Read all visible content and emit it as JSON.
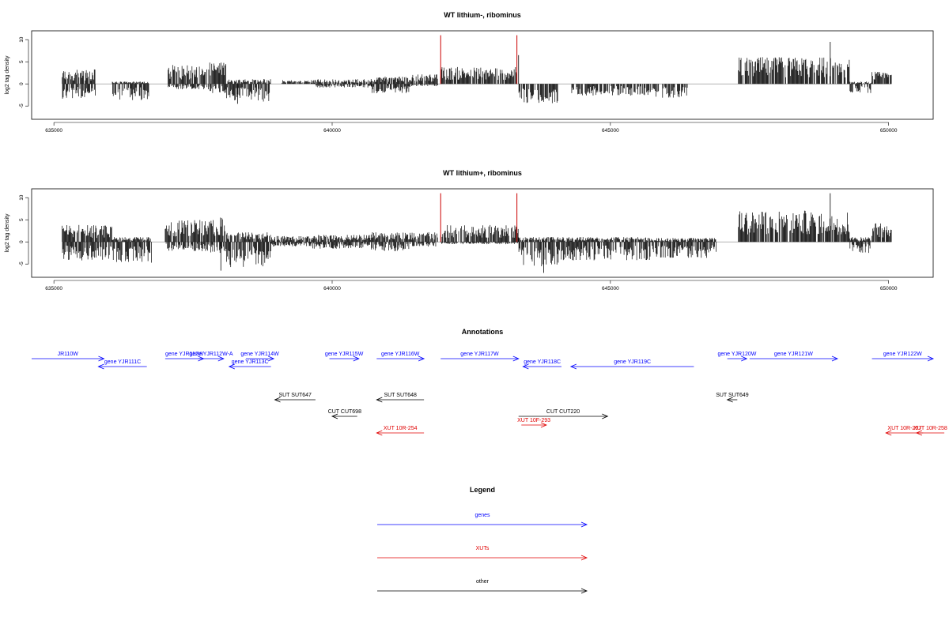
{
  "chart_data": [
    {
      "type": "bar",
      "title": "WT lithium-, ribominus",
      "xlabel": "",
      "ylabel": "log2 tag density",
      "xlim": [
        634600,
        650800
      ],
      "ylim": [
        -8,
        12
      ],
      "xticks": [
        635000,
        640000,
        645000,
        650000
      ],
      "yticks": [
        -5,
        0,
        5,
        10
      ],
      "grid": false,
      "bar_color": "#000000",
      "highlight_color": "#cc0000",
      "highlights": [
        {
          "x": 641950,
          "y": 11
        },
        {
          "x": 643320,
          "y": 11
        }
      ],
      "segments": [
        {
          "start": 635150,
          "end": 635750,
          "pos": 3,
          "neg": -3.2
        },
        {
          "start": 636050,
          "end": 636700,
          "pos": 0.5,
          "neg": -3.5
        },
        {
          "start": 637050,
          "end": 637800,
          "pos": 4,
          "neg": -1.2
        },
        {
          "start": 637800,
          "end": 638100,
          "pos": 4.5,
          "neg": -2
        },
        {
          "start": 638100,
          "end": 638900,
          "pos": 1,
          "neg": -3.8
        },
        {
          "start": 639100,
          "end": 639700,
          "pos": 0.8,
          "neg": 0
        },
        {
          "start": 639700,
          "end": 640700,
          "pos": 1,
          "neg": -0.8
        },
        {
          "start": 640700,
          "end": 641400,
          "pos": 1.5,
          "neg": -2
        },
        {
          "start": 641400,
          "end": 641900,
          "pos": 2,
          "neg": -0.5
        },
        {
          "start": 641950,
          "end": 643350,
          "pos": 3.5,
          "neg": 0
        },
        {
          "start": 643350,
          "end": 644050,
          "pos": 0,
          "neg": -4.5
        },
        {
          "start": 644300,
          "end": 645800,
          "pos": 0,
          "neg": -2.5
        },
        {
          "start": 645800,
          "end": 646400,
          "pos": 0,
          "neg": -3
        },
        {
          "start": 647300,
          "end": 649300,
          "pos": 5.5,
          "neg": 0
        },
        {
          "start": 649300,
          "end": 649700,
          "pos": 0.5,
          "neg": -2
        },
        {
          "start": 649700,
          "end": 650050,
          "pos": 2.5,
          "neg": 0
        }
      ],
      "peaks": [
        {
          "x": 648950,
          "y": 9.5
        },
        {
          "x": 643350,
          "y": 6.5
        },
        {
          "x": 638300,
          "y": -4.5
        }
      ]
    },
    {
      "type": "bar",
      "title": "WT lithium+, ribominus",
      "xlabel": "",
      "ylabel": "log2 tag density",
      "xlim": [
        634600,
        650800
      ],
      "ylim": [
        -8,
        12
      ],
      "xticks": [
        635000,
        640000,
        645000,
        650000
      ],
      "yticks": [
        -5,
        0,
        5,
        10
      ],
      "grid": false,
      "bar_color": "#000000",
      "highlight_color": "#cc0000",
      "highlights": [
        {
          "x": 641950,
          "y": 11
        },
        {
          "x": 643320,
          "y": 11
        }
      ],
      "segments": [
        {
          "start": 635150,
          "end": 636050,
          "pos": 3.5,
          "neg": -4
        },
        {
          "start": 636050,
          "end": 636750,
          "pos": 1,
          "neg": -4.5
        },
        {
          "start": 637000,
          "end": 637800,
          "pos": 4.5,
          "neg": -2
        },
        {
          "start": 637800,
          "end": 638100,
          "pos": 5,
          "neg": -2.5
        },
        {
          "start": 638100,
          "end": 638900,
          "pos": 2,
          "neg": -5.5
        },
        {
          "start": 638900,
          "end": 639600,
          "pos": 1.2,
          "neg": -1
        },
        {
          "start": 639600,
          "end": 640700,
          "pos": 1.5,
          "neg": -1.5
        },
        {
          "start": 640700,
          "end": 641400,
          "pos": 2,
          "neg": -2
        },
        {
          "start": 641400,
          "end": 641900,
          "pos": 2,
          "neg": -1
        },
        {
          "start": 641950,
          "end": 643350,
          "pos": 3.5,
          "neg": -0.5
        },
        {
          "start": 643350,
          "end": 644100,
          "pos": 1,
          "neg": -5.5
        },
        {
          "start": 644100,
          "end": 645800,
          "pos": 1,
          "neg": -4
        },
        {
          "start": 645800,
          "end": 646900,
          "pos": 0.8,
          "neg": -3.5
        },
        {
          "start": 647300,
          "end": 649300,
          "pos": 6.5,
          "neg": 0
        },
        {
          "start": 649300,
          "end": 649700,
          "pos": 1,
          "neg": -2.5
        },
        {
          "start": 649700,
          "end": 650050,
          "pos": 4,
          "neg": 0
        }
      ],
      "peaks": [
        {
          "x": 648950,
          "y": 11
        },
        {
          "x": 638000,
          "y": -6.5
        },
        {
          "x": 643800,
          "y": -7
        }
      ]
    }
  ],
  "annotations": {
    "title": "Annotations",
    "features": [
      {
        "label": "JR110W",
        "start": 634600,
        "end": 635900,
        "strand": "+",
        "row": 0,
        "type": "genes"
      },
      {
        "label": "gene YJR111C",
        "start": 635800,
        "end": 636670,
        "strand": "-",
        "row": 1,
        "type": "genes"
      },
      {
        "label": "gene YJR112W",
        "start": 637000,
        "end": 637690,
        "strand": "+",
        "row": 0,
        "type": "genes"
      },
      {
        "label": "gene YJR112W-A",
        "start": 637600,
        "end": 638050,
        "strand": "+",
        "row": 0,
        "type": "genes"
      },
      {
        "label": "gene YJR113C",
        "start": 638150,
        "end": 638900,
        "strand": "-",
        "row": 1,
        "type": "genes"
      },
      {
        "label": "gene YJR114W",
        "start": 638450,
        "end": 638950,
        "strand": "+",
        "row": 0,
        "type": "genes"
      },
      {
        "label": "gene YJR115W",
        "start": 639950,
        "end": 640480,
        "strand": "+",
        "row": 0,
        "type": "genes"
      },
      {
        "label": "gene YJR116W",
        "start": 640800,
        "end": 641650,
        "strand": "+",
        "row": 0,
        "type": "genes"
      },
      {
        "label": "gene YJR117W",
        "start": 641950,
        "end": 643350,
        "strand": "+",
        "row": 0,
        "type": "genes"
      },
      {
        "label": "gene YJR118C",
        "start": 643430,
        "end": 644120,
        "strand": "-",
        "row": 1,
        "type": "genes"
      },
      {
        "label": "gene YJR119C",
        "start": 644290,
        "end": 646500,
        "strand": "-",
        "row": 1,
        "type": "genes"
      },
      {
        "label": "gene YJR120W",
        "start": 647100,
        "end": 647450,
        "strand": "+",
        "row": 0,
        "type": "genes"
      },
      {
        "label": "gene YJR121W",
        "start": 647500,
        "end": 649080,
        "strand": "+",
        "row": 0,
        "type": "genes"
      },
      {
        "label": "gene YJR122W",
        "start": 649700,
        "end": 650800,
        "strand": "+",
        "row": 0,
        "type": "genes"
      },
      {
        "label": "SUT SUT647",
        "start": 638970,
        "end": 639700,
        "strand": "-",
        "row": 2,
        "type": "other"
      },
      {
        "label": "SUT SUT648",
        "start": 640800,
        "end": 641650,
        "strand": "-",
        "row": 2,
        "type": "other"
      },
      {
        "label": "SUT SUT649",
        "start": 647100,
        "end": 647280,
        "strand": "-",
        "row": 2,
        "type": "other"
      },
      {
        "label": "CUT CUT698",
        "start": 640000,
        "end": 640450,
        "strand": "-",
        "row": 3,
        "type": "other"
      },
      {
        "label": "CUT CUT220",
        "start": 643350,
        "end": 644950,
        "strand": "+",
        "row": 3,
        "type": "other"
      },
      {
        "label": "XUT 10F-293",
        "start": 643400,
        "end": 643850,
        "strand": "+",
        "row": 4,
        "type": "XUTs"
      },
      {
        "label": "XUT 10R-254",
        "start": 640800,
        "end": 641650,
        "strand": "-",
        "row": 5,
        "type": "XUTs"
      },
      {
        "label": "XUT 10R-257",
        "start": 649950,
        "end": 650620,
        "strand": "-",
        "row": 5,
        "type": "XUTs"
      },
      {
        "label": "XUT 10R-258",
        "start": 650500,
        "end": 651000,
        "strand": "-",
        "row": 5,
        "type": "XUTs"
      }
    ]
  },
  "legend": {
    "title": "Legend",
    "items": [
      {
        "label": "genes",
        "color": "#0000ff"
      },
      {
        "label": "XUTs",
        "color": "#e00000"
      },
      {
        "label": "other",
        "color": "#000000"
      }
    ]
  },
  "colors": {
    "genes": "#0000ff",
    "XUTs": "#e00000",
    "other": "#000000"
  }
}
